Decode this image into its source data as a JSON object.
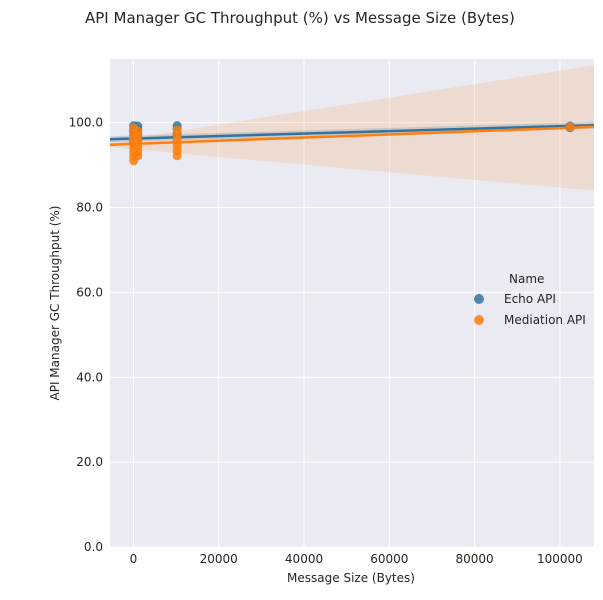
{
  "chart_data": {
    "type": "scatter",
    "title": "API Manager GC Throughput (%) vs Message Size (Bytes)",
    "xlabel": "Message Size (Bytes)",
    "ylabel": "API Manager GC Throughput (%)",
    "xlim": [
      -5500,
      108000
    ],
    "ylim": [
      0,
      115
    ],
    "x_ticks": [
      0,
      20000,
      40000,
      60000,
      80000,
      100000
    ],
    "x_tick_labels": [
      "0",
      "20000",
      "40000",
      "60000",
      "80000",
      "100000"
    ],
    "y_ticks": [
      0,
      20,
      40,
      60,
      80,
      100
    ],
    "y_tick_labels": [
      "0.0",
      "20.0",
      "40.0",
      "60.0",
      "80.0",
      "100.0"
    ],
    "grid": true,
    "legend": {
      "title": "Name",
      "position": "right"
    },
    "series": [
      {
        "name": "Echo API",
        "color": "#3274a1",
        "points": [
          [
            50,
            99.3
          ],
          [
            50,
            98.6
          ],
          [
            50,
            97.9
          ],
          [
            50,
            97.0
          ],
          [
            50,
            96.0
          ],
          [
            50,
            95.2
          ],
          [
            1024,
            99.2
          ],
          [
            1024,
            98.4
          ],
          [
            1024,
            97.5
          ],
          [
            1024,
            96.4
          ],
          [
            10240,
            99.3
          ],
          [
            10240,
            98.5
          ],
          [
            10240,
            97.5
          ],
          [
            10240,
            96.8
          ],
          [
            102400,
            99.2
          ],
          [
            102400,
            98.8
          ]
        ],
        "regression": {
          "x": [
            -5500,
            108000
          ],
          "y": [
            96.1,
            99.4
          ]
        },
        "ci": {
          "x": [
            -5500,
            108000
          ],
          "lower": [
            95.4,
            98.6
          ],
          "upper": [
            96.8,
            100.2
          ]
        }
      },
      {
        "name": "Mediation API",
        "color": "#ff7f0e",
        "points": [
          [
            50,
            98.8
          ],
          [
            50,
            97.5
          ],
          [
            50,
            96.2
          ],
          [
            50,
            95.0
          ],
          [
            50,
            94.0
          ],
          [
            50,
            93.0
          ],
          [
            50,
            92.0
          ],
          [
            50,
            91.0
          ],
          [
            1024,
            98.0
          ],
          [
            1024,
            96.8
          ],
          [
            1024,
            95.5
          ],
          [
            1024,
            94.3
          ],
          [
            1024,
            93.2
          ],
          [
            1024,
            92.2
          ],
          [
            10240,
            98.3
          ],
          [
            10240,
            97.0
          ],
          [
            10240,
            95.8
          ],
          [
            10240,
            94.6
          ],
          [
            10240,
            93.4
          ],
          [
            10240,
            92.2
          ],
          [
            102400,
            99.0
          ]
        ],
        "regression": {
          "x": [
            -5500,
            108000
          ],
          "y": [
            94.8,
            99.0
          ]
        },
        "ci": {
          "x": [
            -5500,
            108000
          ],
          "lower": [
            94.2,
            84.0
          ],
          "upper": [
            95.5,
            113.5
          ]
        }
      }
    ]
  }
}
